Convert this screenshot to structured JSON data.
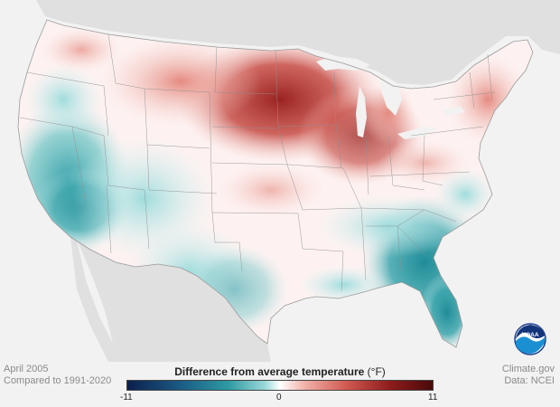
{
  "caption": {
    "date": "April 2005",
    "baseline": "Compared to 1991-2020",
    "source": "Climate.gov",
    "data": "Data: NCEI"
  },
  "legend": {
    "title": "Difference from average temperature",
    "unit": "(°F)",
    "min_label": "-11",
    "mid_label": "0",
    "max_label": "11"
  },
  "colors": {
    "cold_extreme": "#0c1f4d",
    "cold": "#2d9aa3",
    "neutral": "#ffffff",
    "warm": "#d0584f",
    "warm_extreme": "#4a0a0a",
    "land_outside": "#e0e0e0",
    "water": "#f2f2f2"
  },
  "logo": {
    "text": "NOAA"
  }
}
